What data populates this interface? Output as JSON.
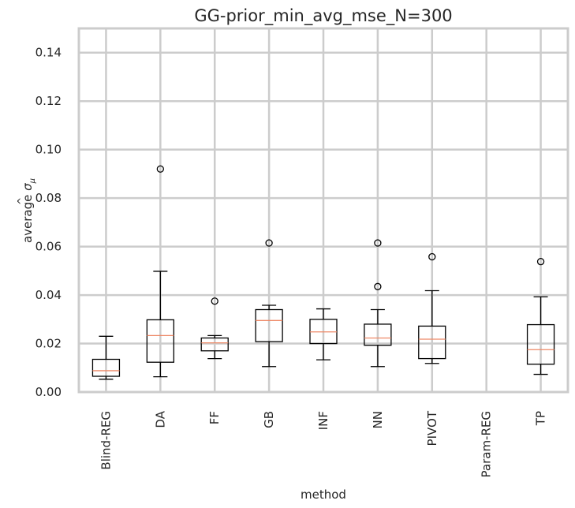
{
  "chart_data": {
    "type": "box",
    "title": "GG-prior_min_avg_mse_N=300",
    "xlabel": "method",
    "ylabel_prefix": "average ",
    "ylabel_symbol": "σ",
    "ylabel_sub": "μ",
    "ylim": [
      0,
      0.15
    ],
    "yticks": [
      "0.00",
      "0.02",
      "0.04",
      "0.06",
      "0.08",
      "0.10",
      "0.12",
      "0.14"
    ],
    "grid": true,
    "categories": [
      "Blind-REG",
      "DA",
      "FF",
      "GB",
      "INF",
      "NN",
      "PIVOT",
      "Param-REG",
      "TP"
    ],
    "boxes": [
      {
        "whisker_low": 0.0053,
        "q1": 0.0065,
        "median": 0.0088,
        "q3": 0.0135,
        "whisker_high": 0.023,
        "outliers": []
      },
      {
        "whisker_low": 0.0063,
        "q1": 0.0123,
        "median": 0.0233,
        "q3": 0.0298,
        "whisker_high": 0.0498,
        "outliers": [
          0.092
        ]
      },
      {
        "whisker_low": 0.0138,
        "q1": 0.017,
        "median": 0.0203,
        "q3": 0.0223,
        "whisker_high": 0.0233,
        "outliers": [
          0.0375
        ]
      },
      {
        "whisker_low": 0.0105,
        "q1": 0.0208,
        "median": 0.0295,
        "q3": 0.034,
        "whisker_high": 0.0358,
        "outliers": [
          0.0615
        ]
      },
      {
        "whisker_low": 0.0133,
        "q1": 0.02,
        "median": 0.0248,
        "q3": 0.03,
        "whisker_high": 0.0343,
        "outliers": []
      },
      {
        "whisker_low": 0.0105,
        "q1": 0.0193,
        "median": 0.0223,
        "q3": 0.028,
        "whisker_high": 0.034,
        "outliers": [
          0.0615,
          0.0435
        ]
      },
      {
        "whisker_low": 0.0118,
        "q1": 0.0138,
        "median": 0.0218,
        "q3": 0.0272,
        "whisker_high": 0.0418,
        "outliers": [
          0.0558
        ]
      },
      null,
      {
        "whisker_low": 0.0073,
        "q1": 0.0115,
        "median": 0.0175,
        "q3": 0.0278,
        "whisker_high": 0.0393,
        "outliers": [
          0.0538
        ]
      }
    ],
    "colors": {
      "box": "#000000",
      "median": "#ee8866",
      "grid": "#cccccc",
      "frame": "#cccccc"
    }
  }
}
